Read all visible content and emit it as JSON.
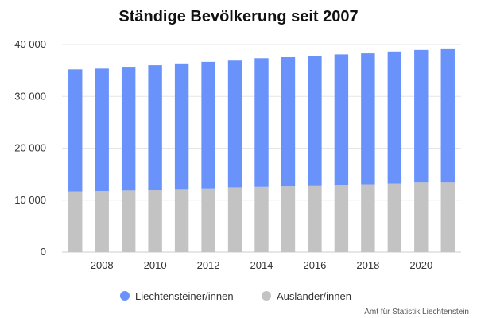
{
  "chart_data": {
    "type": "bar",
    "stacked": true,
    "title": "Ständige Bevölkerung seit 2007",
    "xlabel": "",
    "ylabel": "",
    "categories": [
      "2007",
      "2008",
      "2009",
      "2010",
      "2011",
      "2012",
      "2013",
      "2014",
      "2015",
      "2016",
      "2017",
      "2018",
      "2019",
      "2020",
      "2021"
    ],
    "x_tick_labels": [
      "2008",
      "2010",
      "2012",
      "2014",
      "2016",
      "2018",
      "2020"
    ],
    "y_tick_labels": [
      "0",
      "10 000",
      "20 000",
      "30 000",
      "40 000"
    ],
    "y_ticks": [
      0,
      10000,
      20000,
      30000,
      40000
    ],
    "ylim": [
      0,
      40000
    ],
    "grid": true,
    "legend_position": "bottom-center",
    "series": [
      {
        "name": "Ausländer/innen",
        "color": "#c3c3c3",
        "values": [
          11700,
          11800,
          11900,
          11950,
          12050,
          12150,
          12500,
          12600,
          12700,
          12750,
          12850,
          12950,
          13250,
          13450,
          13450
        ]
      },
      {
        "name": "Liechtensteiner/innen",
        "color": "#6a92fb",
        "values": [
          23500,
          23550,
          23800,
          24050,
          24300,
          24500,
          24400,
          24750,
          24850,
          25050,
          25250,
          25350,
          25400,
          25500,
          25650
        ]
      }
    ],
    "legend": [
      {
        "label": "Liechtensteiner/innen",
        "color": "#6a92fb"
      },
      {
        "label": "Ausländer/innen",
        "color": "#c3c3c3"
      }
    ],
    "source": "Amt für Statistik Liechtenstein"
  }
}
